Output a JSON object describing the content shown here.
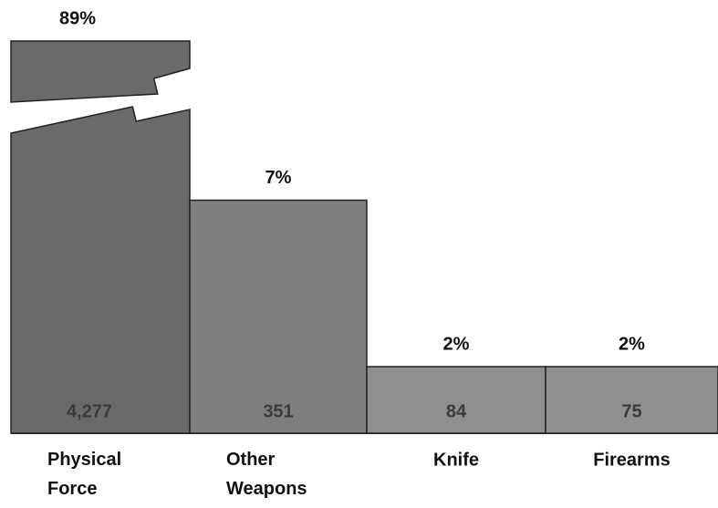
{
  "chart_data": {
    "type": "bar",
    "categories": [
      "Physical Force",
      "Other Weapons",
      "Knife",
      "Firearms"
    ],
    "values": [
      89,
      7,
      2,
      2
    ],
    "value_labels": [
      "89%",
      "7%",
      "2%",
      "2%"
    ],
    "counts": [
      4277,
      351,
      84,
      75
    ],
    "count_labels": [
      "4,277",
      "351",
      "84",
      "75"
    ],
    "colors": [
      "#6a6a6a",
      "#7e7e7e",
      "#8f8f8f",
      "#8f8f8f"
    ]
  }
}
